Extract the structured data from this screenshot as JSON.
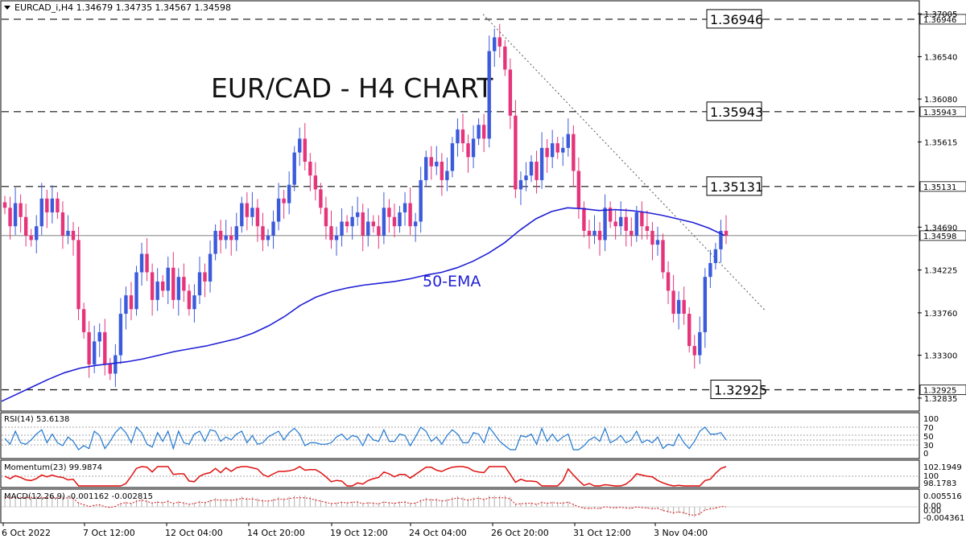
{
  "header": {
    "symbol_line": "EURCAD_i,H4  1.34679  1.34735  1.34567  1.34598"
  },
  "chart_title": "EUR/CAD - H4 CHART",
  "ema_label": "50-EMA",
  "colors": {
    "bull": "#3b5bdb",
    "bear": "#e6347a",
    "ema": "#1f1fd6",
    "rsi": "#1f77d0",
    "momentum": "#e01010",
    "macd_signal": "#e01010",
    "macd_hist": "#b0b0b0",
    "trendline": "#555555",
    "grid": "#000000"
  },
  "chart_data": {
    "type": "candlestick",
    "symbol": "EURCAD_i",
    "timeframe": "H4",
    "last_price": 1.34598,
    "ylim": [
      1.3272,
      1.3712
    ],
    "price_axis_ticks": [
      "1.37005",
      "1.36540",
      "1.36080",
      "1.35615",
      "1.34690",
      "1.34225",
      "1.33760",
      "1.33300",
      "1.32835"
    ],
    "time_axis_labels": [
      "6 Oct 2022",
      "7 Oct 12:00",
      "12 Oct 04:00",
      "14 Oct 20:00",
      "19 Oct 12:00",
      "24 Oct 04:00",
      "26 Oct 20:00",
      "31 Oct 12:00",
      "3 Nov 04:00"
    ],
    "levels": [
      {
        "label": "1.36946",
        "value": 1.36946
      },
      {
        "label": "1.35943",
        "value": 1.35943
      },
      {
        "label": "1.35131",
        "value": 1.35131
      },
      {
        "label": "1.32925",
        "value": 1.32925
      }
    ],
    "current_price_label": "1.34598",
    "close_series": [
      1.349,
      1.347,
      1.3495,
      1.348,
      1.346,
      1.3455,
      1.347,
      1.35,
      1.3485,
      1.35,
      1.3485,
      1.346,
      1.3465,
      1.3455,
      1.338,
      1.3355,
      1.332,
      1.3345,
      1.3355,
      1.332,
      1.331,
      1.333,
      1.3375,
      1.3395,
      1.338,
      1.342,
      1.344,
      1.342,
      1.339,
      1.341,
      1.34,
      1.3425,
      1.339,
      1.3415,
      1.34,
      1.338,
      1.3395,
      1.342,
      1.341,
      1.344,
      1.3465,
      1.3455,
      1.346,
      1.3455,
      1.347,
      1.3495,
      1.348,
      1.349,
      1.347,
      1.3455,
      1.346,
      1.3475,
      1.35,
      1.3495,
      1.3515,
      1.355,
      1.3565,
      1.354,
      1.3525,
      1.351,
      1.349,
      1.347,
      1.3455,
      1.346,
      1.3475,
      1.347,
      1.348,
      1.3485,
      1.346,
      1.3475,
      1.347,
      1.346,
      1.349,
      1.348,
      1.347,
      1.3485,
      1.3495,
      1.347,
      1.3475,
      1.352,
      1.3545,
      1.3535,
      1.354,
      1.352,
      1.353,
      1.356,
      1.3575,
      1.356,
      1.3545,
      1.3565,
      1.358,
      1.3565,
      1.366,
      1.3675,
      1.3665,
      1.364,
      1.359,
      1.351,
      1.352,
      1.3525,
      1.354,
      1.352,
      1.3555,
      1.3545,
      1.356,
      1.355,
      1.3555,
      1.357,
      1.353,
      1.349,
      1.3465,
      1.346,
      1.3465,
      1.3455,
      1.349,
      1.3475,
      1.347,
      1.348,
      1.3465,
      1.346,
      1.3485,
      1.347,
      1.3465,
      1.345,
      1.3455,
      1.342,
      1.34,
      1.3375,
      1.339,
      1.3375,
      1.334,
      1.333,
      1.3355,
      1.3415,
      1.343,
      1.3445,
      1.3465,
      1.346
    ],
    "ema50_series": [
      1.328,
      1.3288,
      1.3296,
      1.3304,
      1.3311,
      1.3316,
      1.3319,
      1.3321,
      1.3323,
      1.3326,
      1.333,
      1.3334,
      1.3337,
      1.334,
      1.3344,
      1.3348,
      1.3354,
      1.3362,
      1.3372,
      1.3384,
      1.3393,
      1.3399,
      1.3403,
      1.3406,
      1.3408,
      1.341,
      1.3413,
      1.3417,
      1.342,
      1.3425,
      1.3432,
      1.3441,
      1.3452,
      1.3466,
      1.3478,
      1.3486,
      1.349,
      1.3489,
      1.3487,
      1.3488,
      1.3487,
      1.3485,
      1.3482,
      1.3478,
      1.3474,
      1.3468,
      1.346
    ],
    "indicators": [
      {
        "name": "RSI",
        "label": "RSI(14) 53.6138",
        "value": 53.6138,
        "levels": [
          "100",
          "70",
          "50",
          "30",
          "0"
        ]
      },
      {
        "name": "Momentum",
        "label": "Momentum(23) 99.9874",
        "value": 99.9874,
        "scale": [
          "102.1949",
          "100",
          "98.1783"
        ]
      },
      {
        "name": "MACD",
        "label": "MACD(12,26,9) -0.001162 -0.002815",
        "main": -0.001162,
        "signal": -0.002815,
        "scale": [
          "0.005516",
          "0.00",
          "0.00",
          "-0.004361"
        ]
      }
    ]
  }
}
